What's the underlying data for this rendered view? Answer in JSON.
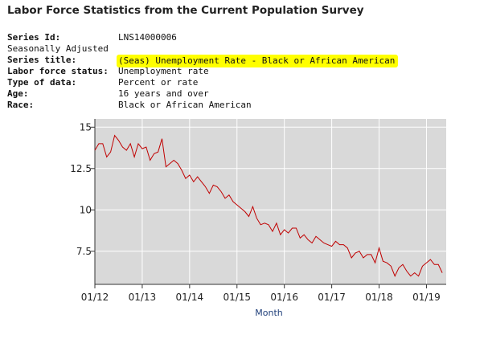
{
  "page": {
    "title": "Labor Force Statistics from the Current Population Survey"
  },
  "series_info": [
    {
      "key": "Series Id:",
      "value": "LNS14000006",
      "bold": true
    },
    {
      "key": "Seasonally Adjusted",
      "value": "",
      "bold": false
    },
    {
      "key": "Series title:",
      "value": "(Seas) Unemployment Rate - Black or African American",
      "bold": true,
      "highlight": true
    },
    {
      "key": "Labor force status:",
      "value": "Unemployment rate",
      "bold": true
    },
    {
      "key": "Type of data:",
      "value": "Percent or rate",
      "bold": true
    },
    {
      "key": "Age:",
      "value": "16 years and over",
      "bold": true
    },
    {
      "key": "Race:",
      "value": "Black or African American",
      "bold": true
    }
  ],
  "colors": {
    "plot_background": "#d9d9d9",
    "grid": "#ffffff",
    "line": "#c00000",
    "highlight": "#ffff00"
  },
  "chart_data": {
    "type": "line",
    "title": "",
    "xlabel": "Month",
    "ylabel": "",
    "ylim": [
      5.5,
      15.5
    ],
    "xlim": [
      0,
      89
    ],
    "y_ticks": [
      7.5,
      10,
      12.5,
      15
    ],
    "y_tick_labels": [
      "7.5",
      "10",
      "12.5",
      "15"
    ],
    "x_ticks": [
      0,
      12,
      24,
      36,
      48,
      60,
      72,
      84
    ],
    "x_tick_labels": [
      "01/12",
      "01/13",
      "01/14",
      "01/15",
      "01/16",
      "01/17",
      "01/18",
      "01/19"
    ],
    "grid": true,
    "series": [
      {
        "name": "(Seas) Unemployment Rate - Black or African American",
        "color": "#c00000",
        "values": [
          13.6,
          14.0,
          14.0,
          13.2,
          13.5,
          14.5,
          14.2,
          13.8,
          13.6,
          14.0,
          13.2,
          14.0,
          13.7,
          13.8,
          13.0,
          13.4,
          13.5,
          14.3,
          12.6,
          12.8,
          13.0,
          12.8,
          12.4,
          11.9,
          12.1,
          11.7,
          12.0,
          11.7,
          11.4,
          11.0,
          11.5,
          11.4,
          11.1,
          10.7,
          10.9,
          10.5,
          10.3,
          10.1,
          9.9,
          9.6,
          10.2,
          9.5,
          9.1,
          9.2,
          9.1,
          8.7,
          9.2,
          8.5,
          8.8,
          8.6,
          8.9,
          8.9,
          8.3,
          8.5,
          8.2,
          8.0,
          8.4,
          8.2,
          8.0,
          7.9,
          7.8,
          8.1,
          7.9,
          7.9,
          7.7,
          7.1,
          7.4,
          7.5,
          7.1,
          7.3,
          7.3,
          6.8,
          7.7,
          6.9,
          6.8,
          6.6,
          6.0,
          6.5,
          6.7,
          6.3,
          6.0,
          6.2,
          6.0,
          6.6,
          6.8,
          7.0,
          6.7,
          6.7,
          6.2
        ]
      }
    ]
  }
}
